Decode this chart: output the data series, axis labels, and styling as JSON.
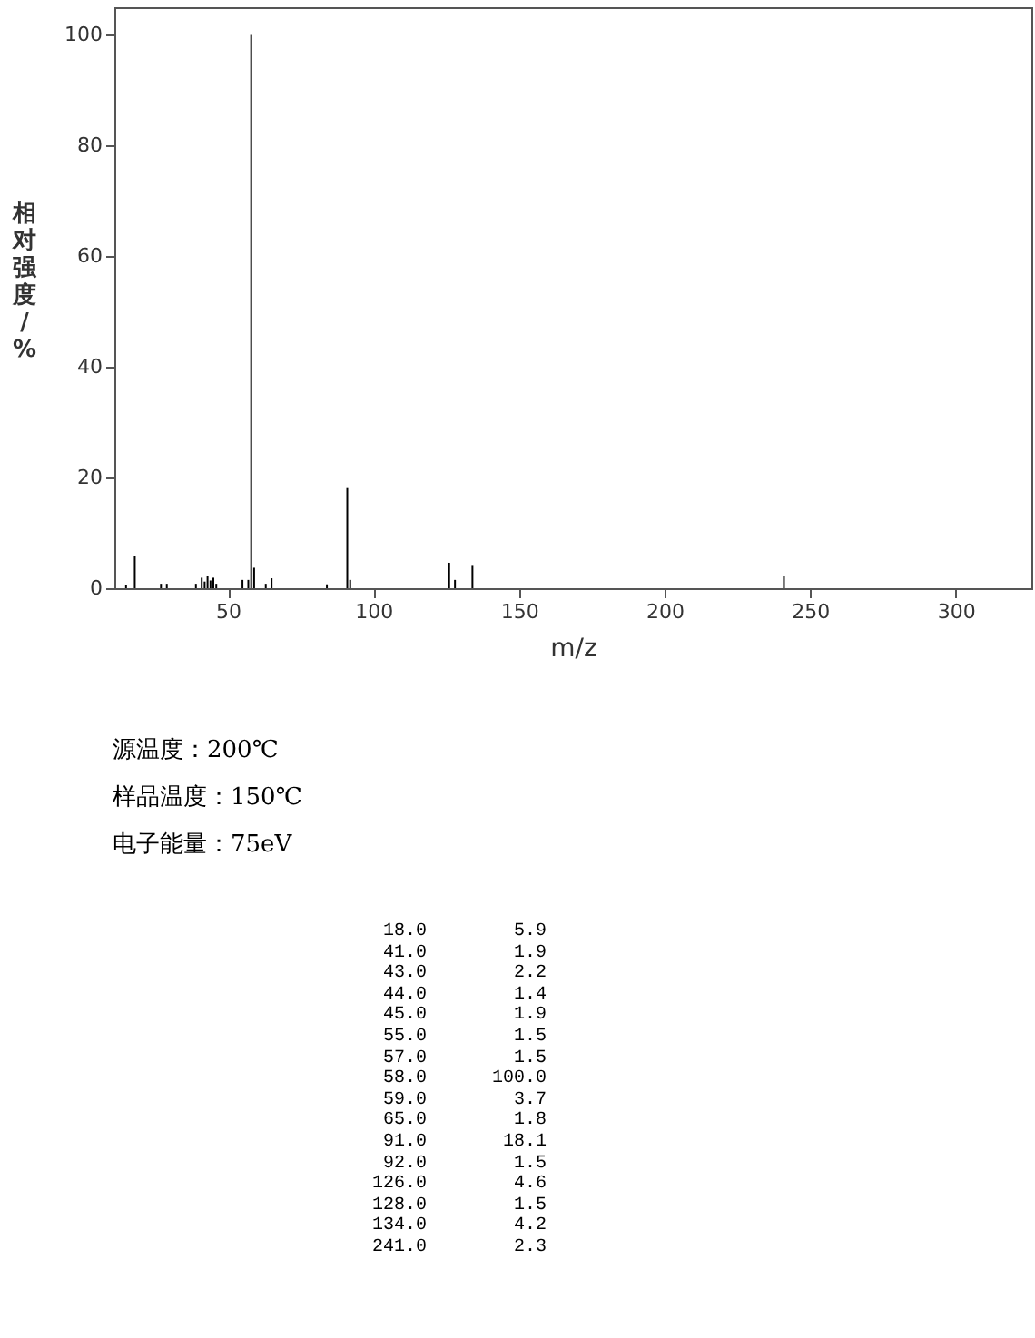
{
  "chart_data": [
    {
      "type": "bar",
      "xlabel": "m/z",
      "ylabel": "相对强度/%",
      "x": [
        15,
        18,
        27,
        29,
        39,
        41,
        42,
        43,
        44,
        45,
        46,
        55,
        57,
        58,
        59,
        63,
        65,
        84,
        91,
        92,
        126,
        128,
        134,
        241
      ],
      "series": [
        {
          "color": "#000000",
          "values": [
            0.5,
            5.9,
            0.8,
            0.8,
            0.8,
            1.9,
            1.2,
            2.2,
            1.4,
            1.9,
            0.8,
            1.5,
            1.5,
            100.0,
            3.7,
            0.8,
            1.8,
            0.7,
            18.1,
            1.5,
            4.6,
            1.5,
            4.2,
            2.3
          ]
        }
      ],
      "xlim": [
        11,
        326
      ],
      "xticks": [
        50,
        100,
        150,
        200,
        250,
        300
      ],
      "ylim": [
        0,
        105
      ],
      "yticks": [
        0,
        20,
        40,
        60,
        80,
        100
      ],
      "annotations": [
        "源温度：200℃",
        "样品温度：150℃",
        "电子能量：75eV"
      ]
    },
    {
      "type": "other",
      "categories": [
        "18.0",
        "41.0",
        "43.0",
        "44.0",
        "45.0",
        "55.0",
        "57.0",
        "58.0",
        "59.0",
        "65.0",
        "91.0",
        "92.0",
        "126.0",
        "128.0",
        "134.0",
        "241.0"
      ],
      "value_labels": [
        "5.9",
        "1.9",
        "2.2",
        "1.4",
        "1.9",
        "1.5",
        "1.5",
        "100.0",
        "3.7",
        "1.8",
        "18.1",
        "1.5",
        "4.6",
        "1.5",
        "4.2",
        "2.3"
      ],
      "data_labels": true
    }
  ]
}
